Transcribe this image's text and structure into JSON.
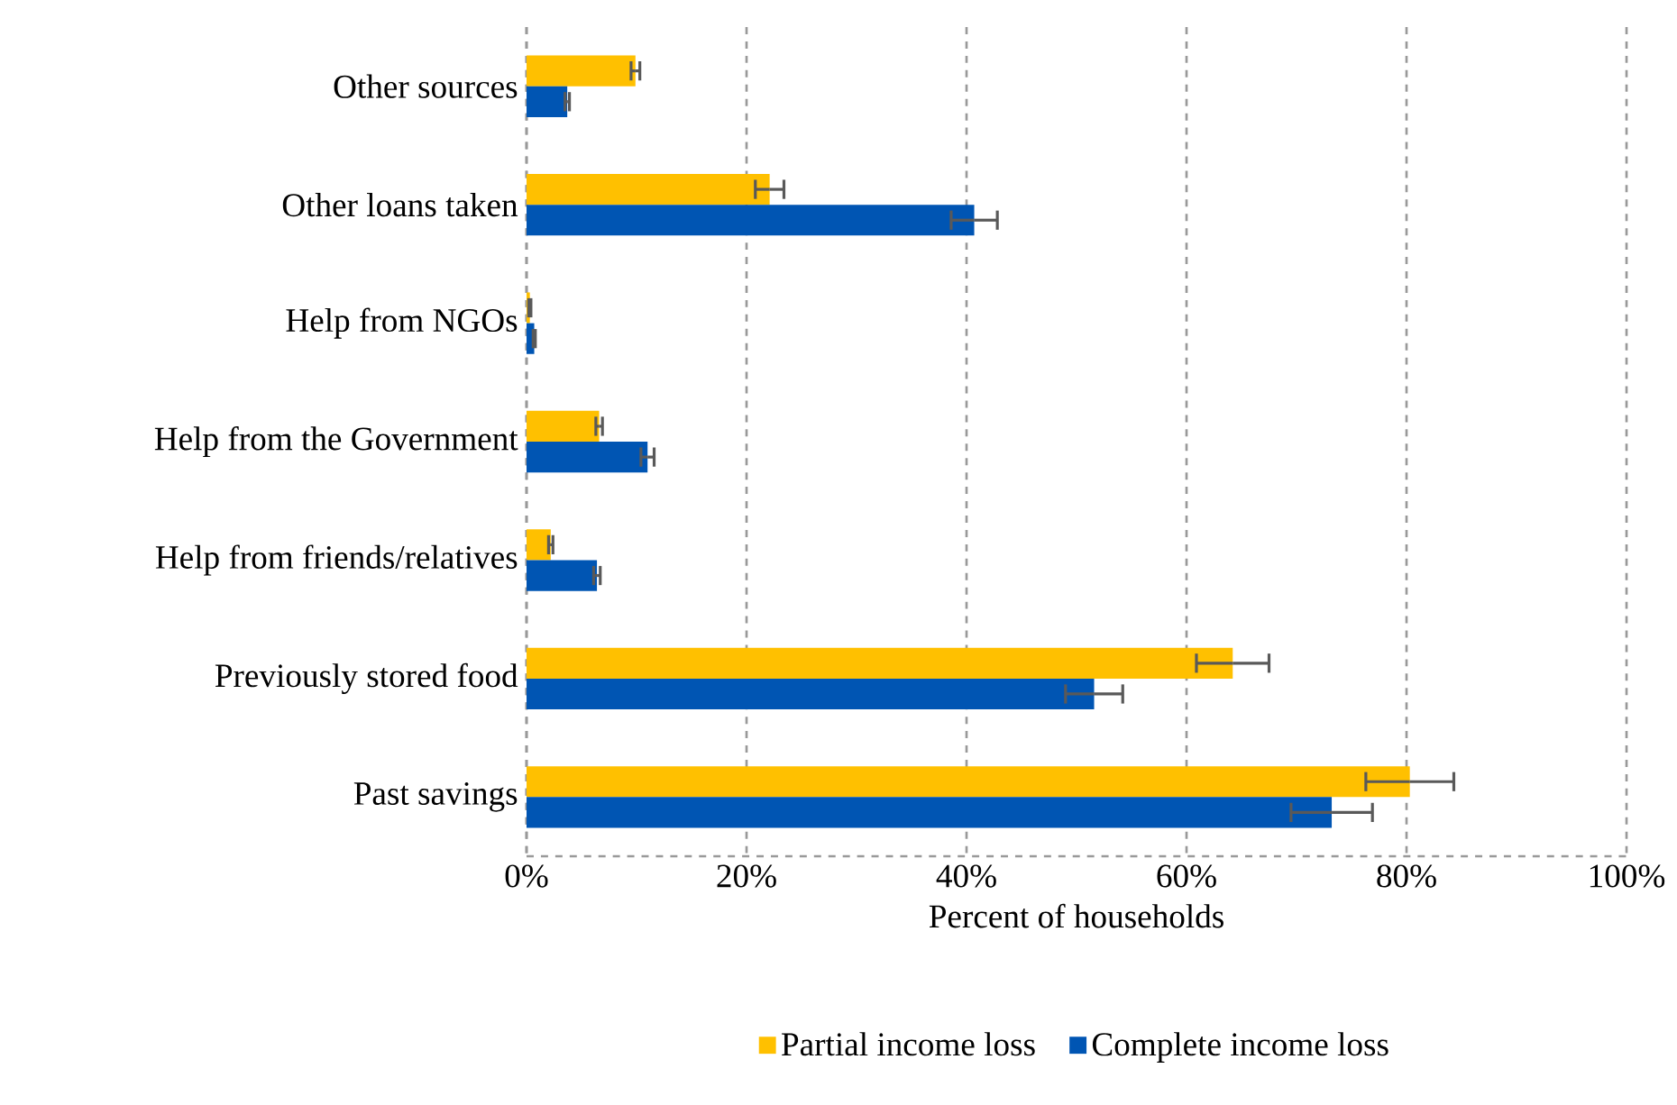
{
  "chart_data": {
    "type": "bar",
    "orientation": "horizontal",
    "xlabel": "Percent of households",
    "categories": [
      "Other sources",
      "Other loans taken",
      "Help from NGOs",
      "Help from the Government",
      "Help from friends/relatives",
      "Previously stored food",
      "Past savings"
    ],
    "series": [
      {
        "name": "Partial income loss",
        "color": "#ffc000",
        "values": [
          9.9,
          22.1,
          0.3,
          6.6,
          2.2,
          64.2,
          80.3
        ],
        "errors": [
          0.4,
          1.3,
          0.1,
          0.3,
          0.2,
          3.3,
          4.0
        ]
      },
      {
        "name": "Complete income loss",
        "color": "#0055b3",
        "values": [
          3.7,
          40.7,
          0.7,
          11.0,
          6.4,
          51.6,
          73.2
        ],
        "errors": [
          0.2,
          2.1,
          0.1,
          0.6,
          0.3,
          2.6,
          3.7
        ]
      }
    ],
    "xlim": [
      0,
      100
    ],
    "xticks": [
      {
        "value": 0,
        "label": "0%"
      },
      {
        "value": 20,
        "label": "20%"
      },
      {
        "value": 40,
        "label": "40%"
      },
      {
        "value": 60,
        "label": "60%"
      },
      {
        "value": 80,
        "label": "80%"
      },
      {
        "value": 100,
        "label": "100%"
      }
    ],
    "grid": "x",
    "legend": "bottom"
  }
}
